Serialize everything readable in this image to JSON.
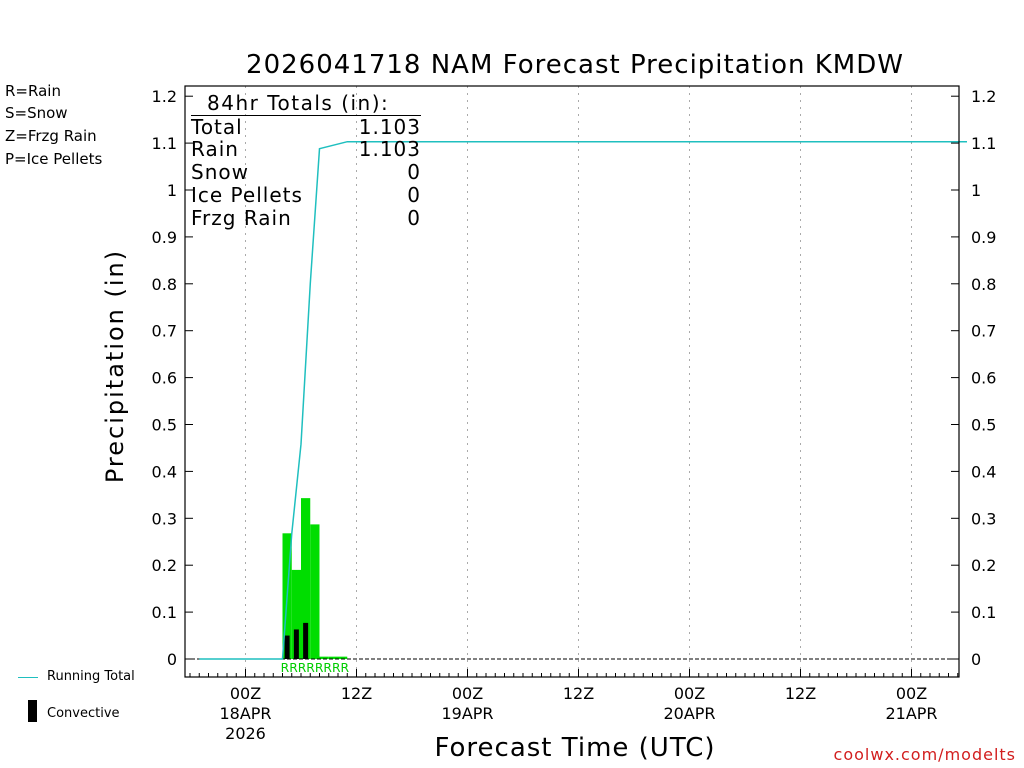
{
  "chart_data": {
    "type": "bar",
    "title": "2026041718 NAM Forecast Precipitation KMDW",
    "xlabel": "Forecast Time (UTC)",
    "ylabel": "Precipitation (in)",
    "ylim": [
      -0.04,
      1.22
    ],
    "y_ticks": [
      0,
      0.1,
      0.2,
      0.3,
      0.4,
      0.5,
      0.6,
      0.7,
      0.8,
      0.9,
      1,
      1.1,
      1.2
    ],
    "y_tick_labels": [
      "0",
      "0.1",
      "0.2",
      "0.3",
      "0.4",
      "0.5",
      "0.6",
      "0.7",
      "0.8",
      "0.9",
      "1",
      "1.1",
      "1.2"
    ],
    "x_range_hours": [
      0,
      84
    ],
    "x_ticks": [
      {
        "hour": 6,
        "label": "00Z",
        "sub1": "18APR",
        "sub2": "2026",
        "grid": true
      },
      {
        "hour": 18,
        "label": "12Z",
        "sub1": "",
        "sub2": "",
        "grid": true
      },
      {
        "hour": 30,
        "label": "00Z",
        "sub1": "19APR",
        "sub2": "",
        "grid": true
      },
      {
        "hour": 42,
        "label": "12Z",
        "sub1": "",
        "sub2": "",
        "grid": true
      },
      {
        "hour": 54,
        "label": "00Z",
        "sub1": "20APR",
        "sub2": "",
        "grid": true
      },
      {
        "hour": 66,
        "label": "12Z",
        "sub1": "",
        "sub2": "",
        "grid": true
      },
      {
        "hour": 78,
        "label": "00Z",
        "sub1": "21APR",
        "sub2": "",
        "grid": true
      }
    ],
    "series": [
      {
        "name": "Rain (hourly)",
        "color": "#00dd00",
        "bars": [
          {
            "start": 10,
            "end": 11,
            "value": 0.268
          },
          {
            "start": 11,
            "end": 12,
            "value": 0.19
          },
          {
            "start": 12,
            "end": 13,
            "value": 0.343
          },
          {
            "start": 13,
            "end": 14,
            "value": 0.287
          },
          {
            "start": 14,
            "end": 15,
            "value": 0.005
          },
          {
            "start": 15,
            "end": 16,
            "value": 0.005
          },
          {
            "start": 16,
            "end": 17,
            "value": 0.005
          }
        ]
      },
      {
        "name": "Convective",
        "color": "#000000",
        "bars": [
          {
            "hour": 10.5,
            "value": 0.05
          },
          {
            "hour": 11.5,
            "value": 0.063
          },
          {
            "hour": 12.5,
            "value": 0.077
          }
        ]
      },
      {
        "name": "Running Total",
        "color": "#1fbfbf",
        "points": [
          [
            1,
            0
          ],
          [
            10,
            0
          ],
          [
            11,
            0.268
          ],
          [
            12,
            0.458
          ],
          [
            13,
            0.801
          ],
          [
            14,
            1.088
          ],
          [
            17,
            1.103
          ],
          [
            84,
            1.103
          ]
        ]
      }
    ],
    "ptype_string": "RRRRRRRR",
    "ptype_start_hour": 9.8,
    "ptype_end_hour": 17.2,
    "ptype_color": "#00cc00",
    "grid_color": "#aaaaaa",
    "zero_line": true
  },
  "totals_box": {
    "heading": "84hr Totals (in):",
    "rows": [
      {
        "label": "Total",
        "value": "1.103"
      },
      {
        "label": "Rain",
        "value": "1.103"
      },
      {
        "label": "Snow",
        "value": "0"
      },
      {
        "label": "Ice Pellets",
        "value": "0"
      },
      {
        "label": "Frzg Rain",
        "value": "0"
      }
    ]
  },
  "ptype_legend": [
    {
      "text": "R=Rain",
      "color": "#00dd00"
    },
    {
      "text": "S=Snow",
      "color": "#3355ff"
    },
    {
      "text": "Z=Frzg Rain",
      "color": "#ff8833"
    },
    {
      "text": "P=Ice Pellets",
      "color": "#ff2299"
    }
  ],
  "series_legend": {
    "running_total": "Running Total",
    "convective": "Convective"
  },
  "credit": "coolwx.com/modelts"
}
